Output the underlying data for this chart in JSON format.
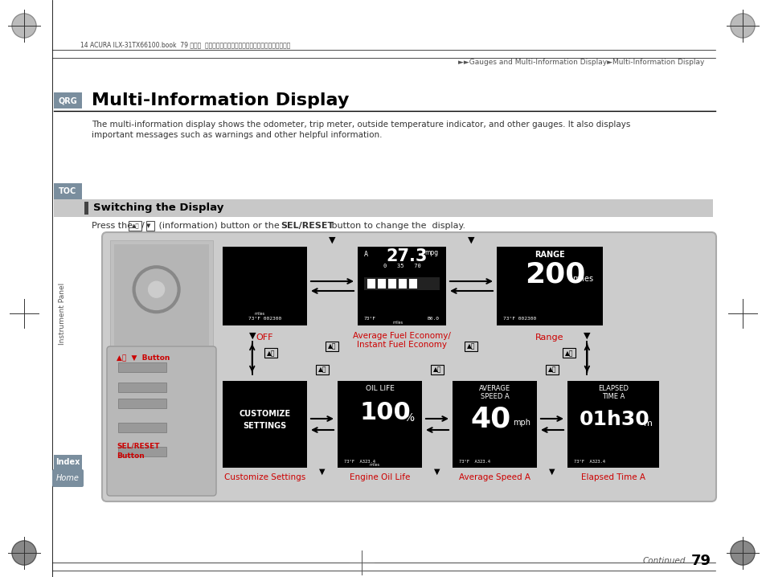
{
  "page_bg": "#ffffff",
  "header_text": "►►Gauges and Multi-Information Display►Multi-Information Display",
  "title": "Multi-Information Display",
  "qrg_bg": "#7a8e9e",
  "qrg_text": "QRG",
  "toc_bg": "#7a8e9e",
  "toc_text": "TOC",
  "index_bg": "#7a8e9e",
  "index_text": "Index",
  "home_text": "Home",
  "body_line1": "The multi-information display shows the odometer, trip meter, outside temperature indicator, and other gauges. It also displays",
  "body_line2": "important messages such as warnings and other helpful information.",
  "section_bg": "#c8c8c8",
  "section_title": "Switching the Display",
  "caption_color": "#cc0000",
  "caption_off": "OFF",
  "caption_fuel": "Average Fuel Economy/\nInstant Fuel Economy",
  "caption_range": "Range",
  "caption_customize": "Customize Settings",
  "caption_oil": "Engine Oil Life",
  "caption_speed": "Average Speed A",
  "caption_elapsed": "Elapsed Time A",
  "continued_text": "Continued",
  "page_number": "79",
  "instrument_panel_text": "Instrument Panel",
  "header_file_text": "14 ACURA ILX-31TX66100.book  79 ページ  　２０１３年３月７日　木曜日　午前１１晎３３分"
}
